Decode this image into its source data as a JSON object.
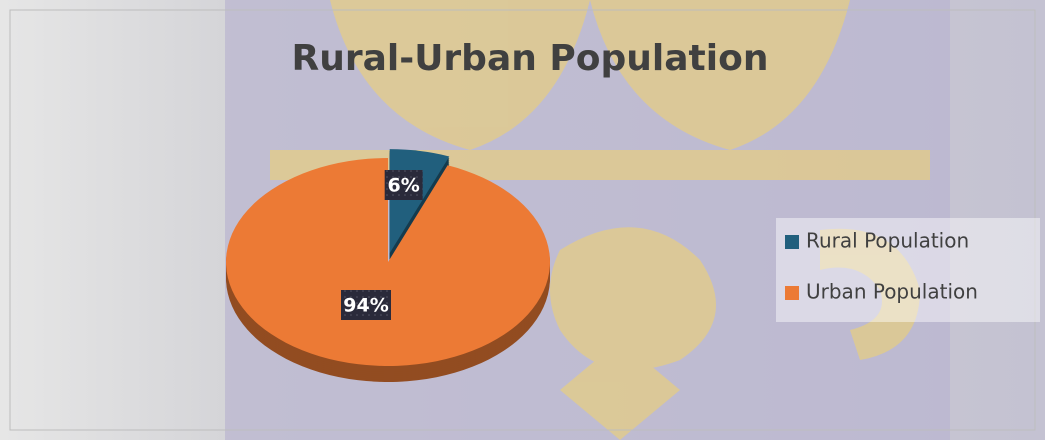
{
  "chart_data": {
    "type": "pie",
    "title": "Rural-Urban Population",
    "categories": [
      "Rural Population",
      "Urban Population"
    ],
    "values": [
      6,
      94
    ],
    "value_labels": [
      "6%",
      "94%"
    ],
    "colors": [
      "#215f7d",
      "#ec7a35"
    ],
    "legend": "right"
  }
}
